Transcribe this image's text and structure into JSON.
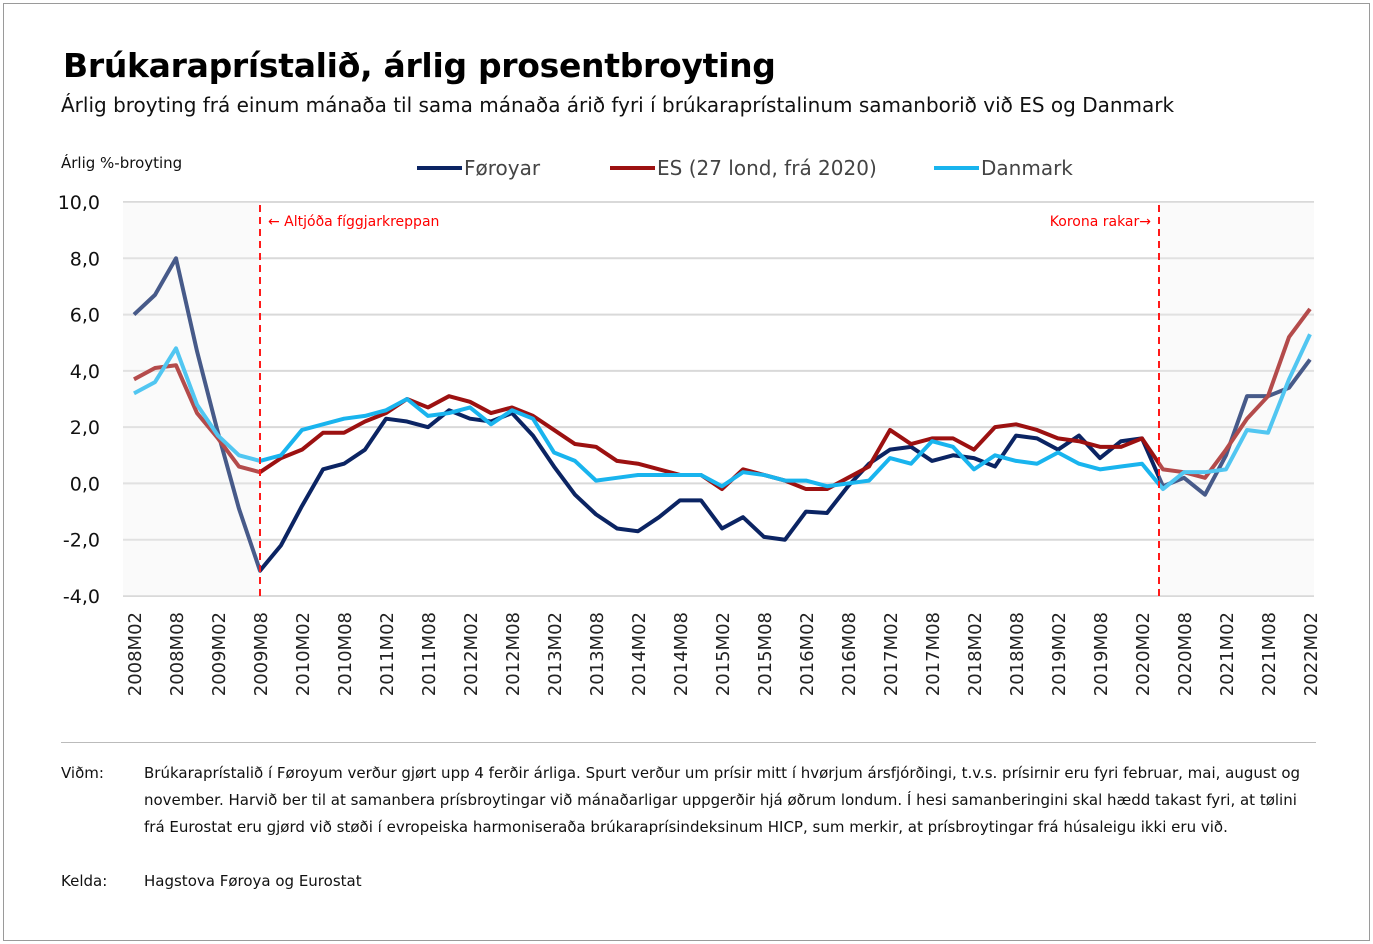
{
  "title": "Brúkaraprístalið, árlig prosentbroyting",
  "subtitle": "Árlig broyting frá einum mánaða til sama mánaða árið fyri í brúkaraprístalinum samanborið við ES og Danmark",
  "notes": {
    "label": "Viðm:",
    "text": "Brúkaraprístalið í Føroyum verður gjørt upp 4 ferðir árliga. Spurt verður um prísir mitt í hvørjum ársfjórðingi, t.v.s. prísirnir eru fyri februar, mai, august og november. Harvið ber til at samanbera prísbroytingar við mánaðarligar uppgerðir hjá øðrum londum. Í hesi samanberingini skal hædd takast fyri, at tølini frá Eurostat eru gjørd við støði í evropeiska harmoniseraða brúkaraprísindeksinum HICP, sum merkir, at prísbroytingar frá húsaleigu ikki eru við."
  },
  "source": {
    "label": "Kelda:",
    "text": "Hagstova Føroya og Eurostat"
  },
  "chart_data": {
    "type": "line",
    "ylabel": "Árlig %-broyting",
    "ylim": [
      -4,
      10
    ],
    "yticks": [
      "10,0",
      "8,0",
      "6,0",
      "4,0",
      "2,0",
      "0,0",
      "-2,0",
      "-4,0"
    ],
    "xticks": [
      "2008M02",
      "2008M08",
      "2009M02",
      "2009M08",
      "2010M02",
      "2010M08",
      "2011M02",
      "2011M08",
      "2012M02",
      "2012M08",
      "2013M02",
      "2013M08",
      "2014M02",
      "2014M08",
      "2015M02",
      "2015M08",
      "2016M02",
      "2016M08",
      "2017M02",
      "2017M08",
      "2018M02",
      "2018M08",
      "2019M02",
      "2019M08",
      "2020M02",
      "2020M08",
      "2021M02",
      "2021M08",
      "2022M02"
    ],
    "x_frequency": "quarterly, 2008M02 to 2022M02",
    "grid": true,
    "legend": "top",
    "shaded_periods": [
      "2008M02–2009M08",
      "2020M05–2022M02"
    ],
    "annotations": [
      {
        "text": "← Altjóða fíggjarkreppan",
        "at": "2009M08",
        "color": "#ff0000"
      },
      {
        "text": "Korona rakar→",
        "at": "2020M05",
        "color": "#ff0000"
      }
    ],
    "series": [
      {
        "name": "Føroyar",
        "color": "#0b2463",
        "values": [
          6.0,
          6.7,
          8.0,
          4.7,
          1.8,
          -0.9,
          -3.1,
          -2.2,
          -0.8,
          0.5,
          0.7,
          1.2,
          2.3,
          2.2,
          2.0,
          2.6,
          2.3,
          2.2,
          2.5,
          1.7,
          0.6,
          -0.4,
          -1.1,
          -1.6,
          -1.7,
          -1.2,
          -0.6,
          -0.6,
          -1.6,
          -1.2,
          -1.9,
          -2.0,
          -1.0,
          -1.05,
          -0.1,
          0.7,
          1.2,
          1.3,
          0.8,
          1.0,
          0.9,
          0.6,
          1.7,
          1.6,
          1.2,
          1.7,
          0.9,
          1.5,
          1.6,
          -0.1,
          0.2,
          -0.4,
          1.0,
          3.1,
          3.1,
          3.4,
          4.4
        ]
      },
      {
        "name": "ES (27 lond, frá 2020)",
        "color": "#9c1111",
        "values": [
          3.7,
          4.1,
          4.2,
          2.5,
          1.6,
          0.6,
          0.4,
          0.9,
          1.2,
          1.8,
          1.8,
          2.2,
          2.5,
          3.0,
          2.7,
          3.1,
          2.9,
          2.5,
          2.7,
          2.4,
          1.9,
          1.4,
          1.3,
          0.8,
          0.7,
          0.5,
          0.3,
          0.3,
          -0.2,
          0.5,
          0.3,
          0.1,
          -0.2,
          -0.2,
          0.2,
          0.6,
          1.9,
          1.4,
          1.6,
          1.6,
          1.2,
          2.0,
          2.1,
          1.9,
          1.6,
          1.5,
          1.3,
          1.3,
          1.6,
          0.5,
          0.4,
          0.2,
          1.2,
          2.3,
          3.1,
          5.2,
          6.2
        ]
      },
      {
        "name": "Danmark",
        "color": "#19b4ee",
        "values": [
          3.2,
          3.6,
          4.8,
          2.8,
          1.7,
          1.0,
          0.8,
          1.0,
          1.9,
          2.1,
          2.3,
          2.4,
          2.6,
          3.0,
          2.4,
          2.5,
          2.7,
          2.1,
          2.6,
          2.3,
          1.1,
          0.8,
          0.1,
          0.2,
          0.3,
          0.3,
          0.3,
          0.3,
          -0.1,
          0.4,
          0.3,
          0.1,
          0.1,
          -0.1,
          0.0,
          0.1,
          0.9,
          0.7,
          1.5,
          1.3,
          0.5,
          1.0,
          0.8,
          0.7,
          1.1,
          0.7,
          0.5,
          0.6,
          0.7,
          -0.2,
          0.4,
          0.4,
          0.5,
          1.9,
          1.8,
          3.7,
          5.3
        ]
      }
    ]
  }
}
